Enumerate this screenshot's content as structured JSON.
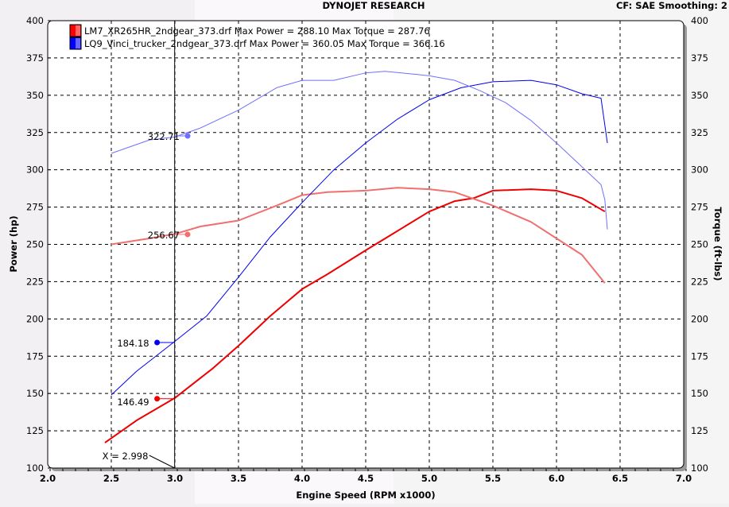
{
  "header": {
    "title": "DYNOJET RESEARCH",
    "settings": "CF: SAE  Smoothing: 2"
  },
  "chart_data": {
    "type": "line",
    "xlabel": "Engine Speed (RPM x1000)",
    "ylabel": "Power (hp)",
    "y2label": "Torque (ft-lbs)",
    "xlim": [
      2.0,
      7.0
    ],
    "ylim": [
      100,
      400
    ],
    "y2lim": [
      100,
      400
    ],
    "xticks": [
      "2.0",
      "2.5",
      "3.0",
      "3.5",
      "4.0",
      "4.5",
      "5.0",
      "5.5",
      "6.0",
      "6.5",
      "7.0"
    ],
    "yticks": [
      "100",
      "125",
      "150",
      "175",
      "200",
      "225",
      "250",
      "275",
      "300",
      "325",
      "350",
      "375",
      "400"
    ],
    "grid": true,
    "legend": [
      {
        "label": "LM7_XR265HR_2ndgear_373.drf Max Power = 288.10 Max Torque = 287.76",
        "color": "#ff0000"
      },
      {
        "label": "LQ9_Vinci_trucker_2ndgear_373.drf Max Power = 360.05 Max Torque = 366.16",
        "color": "#0000ff"
      }
    ],
    "series": [
      {
        "name": "LM7 Power",
        "color": "#ee0000",
        "width": 2,
        "x": [
          2.45,
          2.7,
          3.0,
          3.3,
          3.5,
          3.75,
          4.0,
          4.2,
          4.5,
          4.75,
          5.0,
          5.2,
          5.35,
          5.5,
          5.8,
          6.0,
          6.2,
          6.38
        ],
        "y": [
          117,
          132,
          147,
          167,
          182,
          202,
          220,
          230,
          246,
          259,
          272,
          279,
          281,
          286,
          287,
          286,
          281,
          272
        ]
      },
      {
        "name": "LM7 Torque",
        "color": "#f07070",
        "width": 2,
        "x": [
          2.5,
          2.8,
          3.0,
          3.2,
          3.5,
          3.8,
          4.0,
          4.2,
          4.5,
          4.75,
          5.0,
          5.2,
          5.5,
          5.8,
          6.0,
          6.2,
          6.38
        ],
        "y": [
          250,
          254,
          257,
          262,
          266,
          276,
          283,
          285,
          286,
          288,
          287,
          285,
          276,
          265,
          254,
          243,
          224
        ]
      },
      {
        "name": "LQ9 Power",
        "color": "#0000ee",
        "width": 1,
        "x": [
          2.5,
          2.7,
          3.0,
          3.25,
          3.5,
          3.75,
          4.0,
          4.25,
          4.5,
          4.75,
          5.0,
          5.25,
          5.5,
          5.8,
          6.0,
          6.2,
          6.35,
          6.4
        ],
        "y": [
          149,
          165,
          185,
          202,
          228,
          255,
          278,
          300,
          318,
          334,
          347,
          355,
          359,
          360,
          357,
          351,
          348,
          318
        ]
      },
      {
        "name": "LQ9 Torque",
        "color": "#7070ff",
        "width": 1,
        "x": [
          2.5,
          2.8,
          3.0,
          3.2,
          3.5,
          3.8,
          4.0,
          4.25,
          4.5,
          4.65,
          4.9,
          5.0,
          5.2,
          5.4,
          5.6,
          5.8,
          6.0,
          6.2,
          6.35,
          6.38,
          6.4
        ],
        "y": [
          311,
          320,
          322,
          328,
          340,
          355,
          360,
          360,
          365,
          366,
          364,
          363,
          360,
          353,
          345,
          333,
          318,
          302,
          290,
          280,
          260
        ]
      }
    ],
    "cursor": {
      "x": 2.998,
      "label": "X = 2.998"
    },
    "annotations": [
      {
        "text": "322.71",
        "x": 3.1,
        "y": 322.71,
        "color": "#7070ff"
      },
      {
        "text": "256.67",
        "x": 3.1,
        "y": 256.67,
        "color": "#f07070"
      },
      {
        "text": "184.18",
        "x": 2.86,
        "y": 184.18,
        "color": "#0000ee"
      },
      {
        "text": "146.49",
        "x": 2.86,
        "y": 146.49,
        "color": "#ee0000"
      }
    ]
  }
}
